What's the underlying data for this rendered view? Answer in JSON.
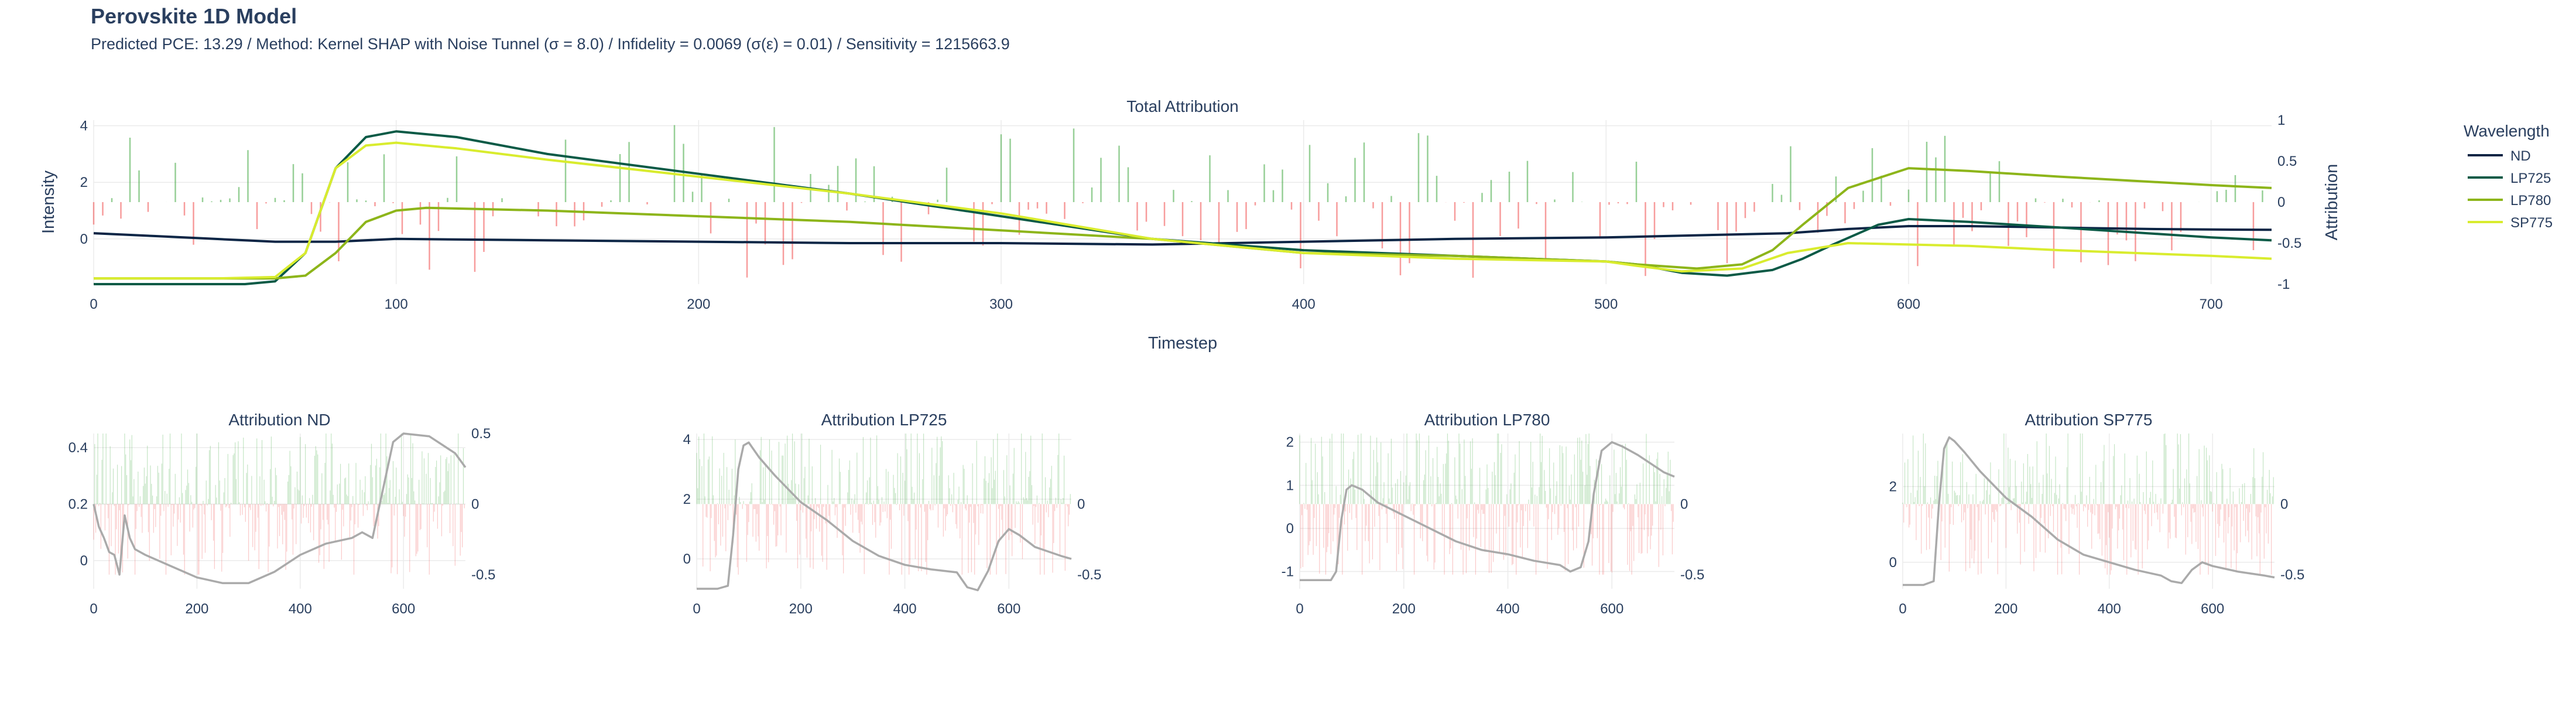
{
  "title": "Perovskite 1D Model",
  "subtitle": "Predicted PCE: 13.29 / Method: Kernel SHAP with Noise Tunnel (σ = 8.0) / Infidelity = 0.0069 (σ(ε) = 0.01) / Sensitivity = 1215663.9",
  "legend": {
    "title": "Wavelength",
    "items": [
      {
        "name": "ND",
        "color": "#0b2545"
      },
      {
        "name": "LP725",
        "color": "#0a5a46"
      },
      {
        "name": "LP780",
        "color": "#8db51a"
      },
      {
        "name": "SP775",
        "color": "#d9ec2e"
      }
    ]
  },
  "colors": {
    "positive": "#3fa83f",
    "negative": "#f04b4b",
    "subplot_line": "#aaaaaa"
  },
  "chart_data": [
    {
      "type": "line",
      "title": "Total Attribution",
      "xlabel": "Timestep",
      "ylabel": "Intensity",
      "y2label": "Attribution",
      "xlim": [
        0,
        720
      ],
      "ylim": [
        -1.6,
        4.2
      ],
      "y2lim": [
        -1,
        1
      ],
      "x_ticks": [
        "0",
        "100",
        "200",
        "300",
        "400",
        "500",
        "600",
        "700"
      ],
      "y_ticks": [
        "0",
        "2",
        "4"
      ],
      "y2_ticks": [
        "-1",
        "-0.5",
        "0",
        "0.5",
        "1"
      ],
      "attribution_bars": "bars",
      "series": [
        {
          "name": "ND",
          "x": [
            0,
            20,
            40,
            60,
            80,
            100,
            150,
            200,
            250,
            300,
            350,
            400,
            450,
            500,
            520,
            540,
            560,
            580,
            600,
            620,
            640,
            660,
            680,
            700,
            720
          ],
          "values": [
            0.2,
            0.1,
            0.0,
            -0.1,
            -0.1,
            0.0,
            -0.05,
            -0.1,
            -0.15,
            -0.15,
            -0.2,
            -0.1,
            0.0,
            0.05,
            0.1,
            0.15,
            0.2,
            0.35,
            0.45,
            0.45,
            0.42,
            0.38,
            0.35,
            0.33,
            0.32
          ]
        },
        {
          "name": "LP725",
          "x": [
            0,
            30,
            50,
            60,
            70,
            80,
            90,
            100,
            120,
            150,
            200,
            250,
            300,
            350,
            400,
            450,
            500,
            510,
            525,
            540,
            555,
            565,
            575,
            590,
            600,
            620,
            650,
            700,
            720
          ],
          "values": [
            -1.6,
            -1.6,
            -1.6,
            -1.5,
            -0.5,
            2.5,
            3.6,
            3.8,
            3.6,
            3.0,
            2.3,
            1.6,
            0.8,
            0.0,
            -0.4,
            -0.6,
            -0.8,
            -0.9,
            -1.2,
            -1.3,
            -1.1,
            -0.7,
            -0.2,
            0.5,
            0.7,
            0.6,
            0.4,
            0.05,
            -0.05
          ]
        },
        {
          "name": "LP780",
          "x": [
            0,
            30,
            60,
            70,
            80,
            90,
            100,
            110,
            130,
            150,
            200,
            250,
            300,
            350,
            400,
            450,
            500,
            510,
            530,
            545,
            555,
            565,
            580,
            600,
            620,
            650,
            700,
            720
          ],
          "values": [
            -1.4,
            -1.4,
            -1.4,
            -1.3,
            -0.5,
            0.6,
            1.0,
            1.1,
            1.05,
            1.0,
            0.8,
            0.6,
            0.3,
            0.0,
            -0.5,
            -0.6,
            -0.8,
            -0.9,
            -1.05,
            -0.9,
            -0.4,
            0.5,
            1.8,
            2.5,
            2.4,
            2.2,
            1.9,
            1.8
          ]
        },
        {
          "name": "SP775",
          "x": [
            0,
            40,
            60,
            70,
            80,
            90,
            100,
            120,
            150,
            200,
            250,
            300,
            350,
            400,
            450,
            500,
            510,
            525,
            545,
            560,
            580,
            600,
            620,
            650,
            700,
            720
          ],
          "values": [
            -1.4,
            -1.4,
            -1.35,
            -0.5,
            2.5,
            3.3,
            3.4,
            3.2,
            2.8,
            2.2,
            1.6,
            0.9,
            0.0,
            -0.5,
            -0.7,
            -0.8,
            -0.95,
            -1.15,
            -1.05,
            -0.5,
            -0.15,
            -0.2,
            -0.25,
            -0.4,
            -0.6,
            -0.7
          ]
        }
      ]
    },
    {
      "type": "line",
      "title": "Attribution ND",
      "xlim": [
        0,
        720
      ],
      "ylim": [
        -0.1,
        0.45
      ],
      "y2lim": [
        -0.6,
        0.5
      ],
      "x_ticks": [
        "0",
        "200",
        "400",
        "600"
      ],
      "y_ticks": [
        "0",
        "0.2",
        "0.4"
      ],
      "y2_ticks": [
        "-0.5",
        "0",
        "0.5"
      ],
      "attribution_bars": "bars",
      "series": [
        {
          "name": "ND",
          "x": [
            0,
            10,
            20,
            30,
            40,
            50,
            60,
            70,
            80,
            100,
            150,
            200,
            250,
            300,
            350,
            400,
            450,
            500,
            520,
            540,
            560,
            580,
            600,
            650,
            700,
            720
          ],
          "values": [
            0.2,
            0.12,
            0.08,
            0.03,
            0.02,
            -0.05,
            0.16,
            0.08,
            0.04,
            0.02,
            -0.02,
            -0.06,
            -0.08,
            -0.08,
            -0.04,
            0.02,
            0.06,
            0.08,
            0.1,
            0.08,
            0.25,
            0.42,
            0.45,
            0.44,
            0.38,
            0.33
          ]
        }
      ]
    },
    {
      "type": "line",
      "title": "Attribution LP725",
      "xlim": [
        0,
        720
      ],
      "ylim": [
        -1.0,
        4.2
      ],
      "y2lim": [
        -0.6,
        0.5
      ],
      "x_ticks": [
        "0",
        "200",
        "400",
        "600"
      ],
      "y_ticks": [
        "0",
        "2",
        "4"
      ],
      "y2_ticks": [
        "-0.5",
        "0"
      ],
      "attribution_bars": "bars",
      "series": [
        {
          "name": "LP725",
          "x": [
            0,
            40,
            60,
            70,
            80,
            90,
            100,
            120,
            150,
            200,
            250,
            300,
            350,
            400,
            450,
            500,
            520,
            540,
            560,
            580,
            600,
            620,
            650,
            700,
            720
          ],
          "values": [
            -1.0,
            -1.0,
            -0.9,
            0.8,
            3.0,
            3.8,
            3.9,
            3.4,
            2.8,
            1.9,
            1.3,
            0.6,
            0.1,
            -0.2,
            -0.35,
            -0.45,
            -0.95,
            -1.05,
            -0.4,
            0.6,
            1.0,
            0.8,
            0.4,
            0.1,
            0.0
          ]
        }
      ]
    },
    {
      "type": "line",
      "title": "Attribution LP780",
      "xlim": [
        0,
        720
      ],
      "ylim": [
        -1.4,
        2.2
      ],
      "y2lim": [
        -0.6,
        0.5
      ],
      "x_ticks": [
        "0",
        "200",
        "400",
        "600"
      ],
      "y_ticks": [
        "-1",
        "0",
        "1",
        "2"
      ],
      "y2_ticks": [
        "-0.5",
        "0"
      ],
      "attribution_bars": "bars",
      "series": [
        {
          "name": "LP780",
          "x": [
            0,
            30,
            60,
            70,
            80,
            90,
            100,
            120,
            150,
            200,
            250,
            300,
            350,
            400,
            450,
            500,
            520,
            540,
            555,
            565,
            580,
            600,
            620,
            650,
            700,
            720
          ],
          "values": [
            -1.2,
            -1.2,
            -1.2,
            -1.0,
            0.2,
            0.9,
            1.0,
            0.9,
            0.6,
            0.3,
            0.0,
            -0.3,
            -0.5,
            -0.6,
            -0.75,
            -0.85,
            -1.0,
            -0.9,
            -0.3,
            0.8,
            1.8,
            2.0,
            1.9,
            1.7,
            1.3,
            1.2
          ]
        }
      ]
    },
    {
      "type": "line",
      "title": "Attribution SP775",
      "xlim": [
        0,
        720
      ],
      "ylim": [
        -0.7,
        3.4
      ],
      "y2lim": [
        -0.6,
        0.5
      ],
      "x_ticks": [
        "0",
        "200",
        "400",
        "600"
      ],
      "y_ticks": [
        "0",
        "2"
      ],
      "y2_ticks": [
        "-0.5",
        "0"
      ],
      "attribution_bars": "bars",
      "series": [
        {
          "name": "SP775",
          "x": [
            0,
            40,
            60,
            70,
            80,
            90,
            100,
            120,
            150,
            200,
            250,
            300,
            350,
            400,
            450,
            500,
            520,
            540,
            560,
            580,
            600,
            650,
            700,
            720
          ],
          "values": [
            -0.6,
            -0.6,
            -0.5,
            1.5,
            3.0,
            3.3,
            3.2,
            2.9,
            2.4,
            1.7,
            1.2,
            0.6,
            0.2,
            0.0,
            -0.2,
            -0.35,
            -0.5,
            -0.55,
            -0.2,
            0.0,
            -0.1,
            -0.25,
            -0.35,
            -0.4
          ]
        }
      ]
    }
  ]
}
